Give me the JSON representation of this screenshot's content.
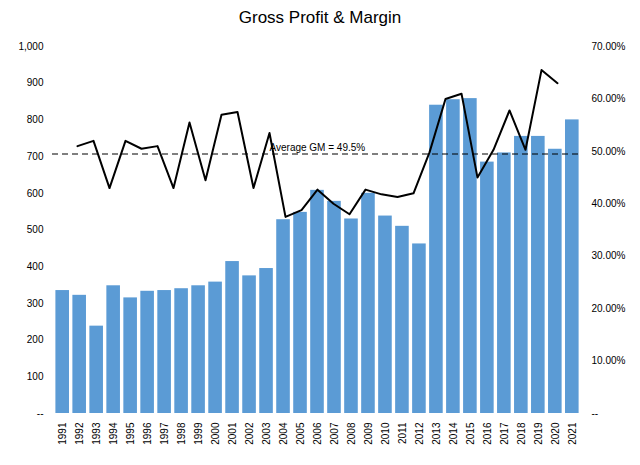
{
  "chart_data": {
    "type": "bar",
    "title": "Gross Profit & Margin",
    "categories": [
      "1991",
      "1992",
      "1993",
      "1994",
      "1995",
      "1996",
      "1997",
      "1998",
      "1999",
      "2000",
      "2001",
      "2002",
      "2003",
      "2004",
      "2005",
      "2006",
      "2007",
      "2008",
      "2009",
      "2010",
      "2011",
      "2012",
      "2013",
      "2014",
      "2015",
      "2016",
      "2017",
      "2018",
      "2019",
      "2020",
      "2021"
    ],
    "series": [
      {
        "type": "bar",
        "color": "#5B9BD5",
        "values": [
          335,
          322,
          238,
          348,
          315,
          333,
          335,
          340,
          348,
          358,
          414,
          375,
          395,
          528,
          548,
          608,
          578,
          530,
          600,
          538,
          510,
          462,
          840,
          855,
          858,
          685,
          710,
          755,
          755,
          720,
          800
        ]
      },
      {
        "type": "line",
        "axis": "y2",
        "color": "#000000",
        "line_style": "solid",
        "values": [
          0.51,
          0.52,
          0.43,
          0.52,
          0.505,
          0.51,
          0.43,
          0.555,
          0.445,
          0.57,
          0.575,
          0.43,
          0.535,
          0.375,
          0.388,
          0.427,
          0.4,
          0.38,
          0.427,
          0.418,
          0.413,
          0.42,
          0.498,
          0.6,
          0.61,
          0.45,
          0.503,
          0.578,
          0.503,
          0.655,
          0.63
        ]
      }
    ],
    "average_line": {
      "value": 0.495,
      "label": "Average GM = 49.5%",
      "color": "#000000",
      "line_style": "dashed",
      "axis": "y2"
    },
    "ylim": [
      0,
      1000
    ],
    "yticks": [
      {
        "value": 0,
        "label": "--"
      },
      100,
      200,
      300,
      400,
      500,
      600,
      700,
      800,
      900,
      {
        "value": 1000,
        "label": "1,000"
      }
    ],
    "y2lim": [
      0,
      0.7
    ],
    "y2ticks": [
      {
        "value": 0.0,
        "label": "--"
      },
      {
        "value": 0.1,
        "label": "10.00%"
      },
      {
        "value": 0.2,
        "label": "20.00%"
      },
      {
        "value": 0.3,
        "label": "30.00%"
      },
      {
        "value": 0.4,
        "label": "40.00%"
      },
      {
        "value": 0.5,
        "label": "50.00%"
      },
      {
        "value": 0.6,
        "label": "60.00%"
      },
      {
        "value": 0.7,
        "label": "70.00%"
      }
    ],
    "grid": false
  }
}
